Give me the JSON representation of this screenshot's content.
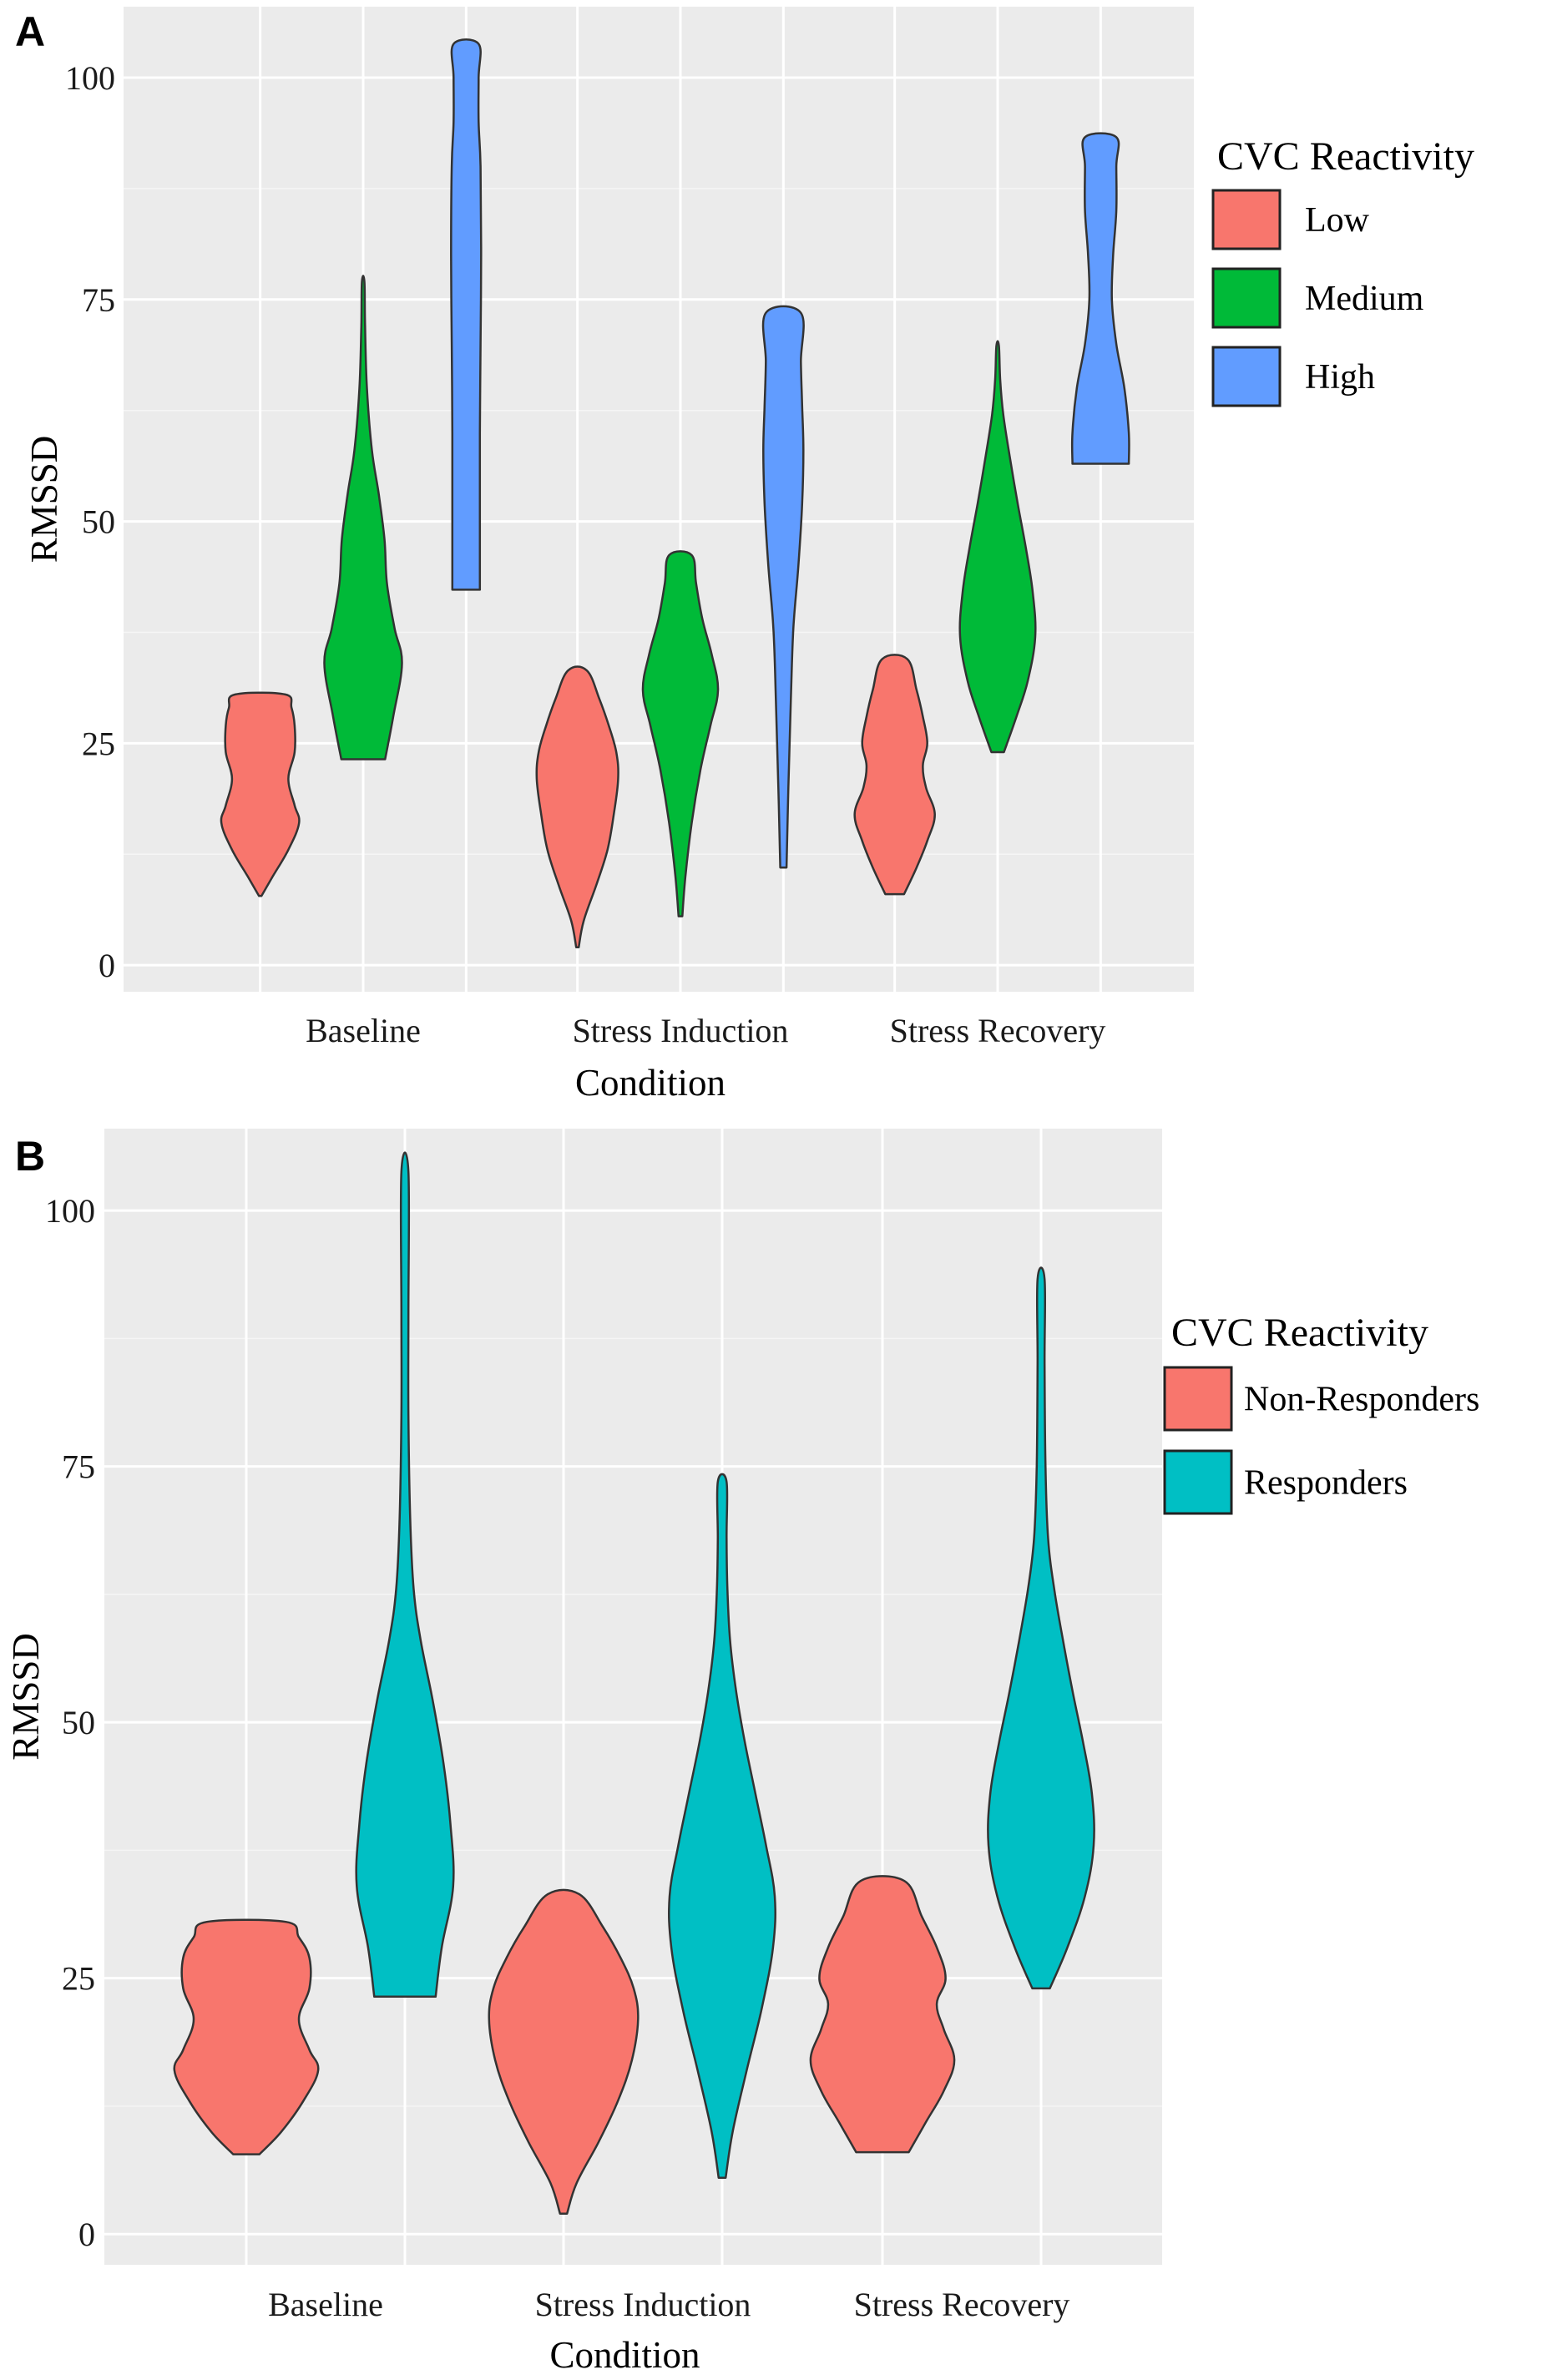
{
  "chart_data": [
    {
      "panel": "A",
      "type": "violin",
      "title": "",
      "xlabel": "Condition",
      "ylabel": "RMSSD",
      "ylim": [
        -3,
        108
      ],
      "yticks": [
        0,
        25,
        50,
        75,
        100
      ],
      "categories": [
        "Baseline",
        "Stress Induction",
        "Stress Recovery"
      ],
      "legend": {
        "title": "CVC Reactivity",
        "position": "right"
      },
      "grid": true,
      "series": [
        {
          "name": "Low",
          "color": "#F8766D",
          "violins": [
            {
              "category": "Baseline",
              "min": 7.8,
              "max": 30.5,
              "profile": [
                [
                  7.8,
                  0.02
                ],
                [
                  10,
                  0.2
                ],
                [
                  13,
                  0.45
                ],
                [
                  16,
                  0.62
                ],
                [
                  18,
                  0.55
                ],
                [
                  21,
                  0.45
                ],
                [
                  24,
                  0.55
                ],
                [
                  27,
                  0.55
                ],
                [
                  29,
                  0.5
                ],
                [
                  30.5,
                  0.4
                ]
              ]
            },
            {
              "category": "Stress Induction",
              "min": 2.0,
              "max": 33.2,
              "profile": [
                [
                  2,
                  0.02
                ],
                [
                  5,
                  0.1
                ],
                [
                  9,
                  0.3
                ],
                [
                  13,
                  0.48
                ],
                [
                  17,
                  0.58
                ],
                [
                  21,
                  0.65
                ],
                [
                  24,
                  0.62
                ],
                [
                  27,
                  0.5
                ],
                [
                  30,
                  0.35
                ],
                [
                  33.2,
                  0.15
                ]
              ]
            },
            {
              "category": "Stress Recovery",
              "min": 8.0,
              "max": 34.5,
              "profile": [
                [
                  8,
                  0.15
                ],
                [
                  11,
                  0.35
                ],
                [
                  14,
                  0.52
                ],
                [
                  17,
                  0.64
                ],
                [
                  20,
                  0.5
                ],
                [
                  22.5,
                  0.45
                ],
                [
                  25,
                  0.52
                ],
                [
                  28,
                  0.45
                ],
                [
                  31,
                  0.35
                ],
                [
                  34.5,
                  0.2
                ]
              ]
            }
          ]
        },
        {
          "name": "Medium",
          "color": "#00BA38",
          "violins": [
            {
              "category": "Baseline",
              "min": 23.2,
              "max": 77.0,
              "profile": [
                [
                  23.2,
                  0.35
                ],
                [
                  28,
                  0.48
                ],
                [
                  34,
                  0.62
                ],
                [
                  38,
                  0.5
                ],
                [
                  43,
                  0.38
                ],
                [
                  48,
                  0.34
                ],
                [
                  53,
                  0.25
                ],
                [
                  58,
                  0.14
                ],
                [
                  65,
                  0.06
                ],
                [
                  72,
                  0.03
                ],
                [
                  77,
                  0.02
                ]
              ]
            },
            {
              "category": "Stress Induction",
              "min": 5.5,
              "max": 46.2,
              "profile": [
                [
                  5.5,
                  0.03
                ],
                [
                  10,
                  0.08
                ],
                [
                  16,
                  0.18
                ],
                [
                  22,
                  0.32
                ],
                [
                  27,
                  0.48
                ],
                [
                  31,
                  0.6
                ],
                [
                  35,
                  0.5
                ],
                [
                  39,
                  0.35
                ],
                [
                  43,
                  0.25
                ],
                [
                  46.2,
                  0.18
                ]
              ]
            },
            {
              "category": "Stress Recovery",
              "min": 24.0,
              "max": 69.8,
              "profile": [
                [
                  24,
                  0.1
                ],
                [
                  28,
                  0.3
                ],
                [
                  32,
                  0.48
                ],
                [
                  37,
                  0.6
                ],
                [
                  42,
                  0.56
                ],
                [
                  47,
                  0.45
                ],
                [
                  52,
                  0.32
                ],
                [
                  57,
                  0.2
                ],
                [
                  62,
                  0.09
                ],
                [
                  66,
                  0.04
                ],
                [
                  69.8,
                  0.02
                ]
              ]
            }
          ]
        },
        {
          "name": "High",
          "color": "#619CFF",
          "violins": [
            {
              "category": "Baseline",
              "min": 42.3,
              "max": 103.8,
              "profile": [
                [
                  42.3,
                  0.22
                ],
                [
                  50,
                  0.22
                ],
                [
                  60,
                  0.22
                ],
                [
                  70,
                  0.23
                ],
                [
                  80,
                  0.24
                ],
                [
                  90,
                  0.23
                ],
                [
                  95,
                  0.2
                ],
                [
                  100,
                  0.2
                ],
                [
                  103.8,
                  0.2
                ]
              ]
            },
            {
              "category": "Stress Induction",
              "min": 11.0,
              "max": 73.5,
              "profile": [
                [
                  11,
                  0.05
                ],
                [
                  20,
                  0.08
                ],
                [
                  30,
                  0.12
                ],
                [
                  38,
                  0.16
                ],
                [
                  45,
                  0.24
                ],
                [
                  52,
                  0.3
                ],
                [
                  58,
                  0.32
                ],
                [
                  63,
                  0.3
                ],
                [
                  68,
                  0.28
                ],
                [
                  73.5,
                  0.28
                ]
              ]
            },
            {
              "category": "Stress Recovery",
              "min": 56.5,
              "max": 93.3,
              "profile": [
                [
                  56.5,
                  0.45
                ],
                [
                  60,
                  0.45
                ],
                [
                  65,
                  0.38
                ],
                [
                  70,
                  0.25
                ],
                [
                  75,
                  0.18
                ],
                [
                  80,
                  0.2
                ],
                [
                  85,
                  0.25
                ],
                [
                  90,
                  0.25
                ],
                [
                  93.3,
                  0.25
                ]
              ]
            }
          ]
        }
      ]
    },
    {
      "panel": "B",
      "type": "violin",
      "title": "",
      "xlabel": "Condition",
      "ylabel": "RMSSD",
      "ylim": [
        -3,
        108
      ],
      "yticks": [
        0,
        25,
        50,
        75,
        100
      ],
      "categories": [
        "Baseline",
        "Stress Induction",
        "Stress Recovery"
      ],
      "legend": {
        "title": "CVC Reactivity",
        "position": "right"
      },
      "grid": true,
      "series": [
        {
          "name": "Non-Responders",
          "color": "#F8766D",
          "violins": [
            {
              "category": "Baseline",
              "min": 7.8,
              "max": 30.5,
              "profile": [
                [
                  7.8,
                  0.15
                ],
                [
                  10,
                  0.4
                ],
                [
                  13,
                  0.65
                ],
                [
                  16,
                  0.82
                ],
                [
                  18,
                  0.72
                ],
                [
                  21,
                  0.6
                ],
                [
                  24,
                  0.72
                ],
                [
                  27,
                  0.72
                ],
                [
                  29,
                  0.6
                ],
                [
                  30.5,
                  0.45
                ]
              ]
            },
            {
              "category": "Stress Induction",
              "min": 2.0,
              "max": 33.2,
              "profile": [
                [
                  2,
                  0.04
                ],
                [
                  5,
                  0.15
                ],
                [
                  9,
                  0.4
                ],
                [
                  13,
                  0.62
                ],
                [
                  17,
                  0.78
                ],
                [
                  21,
                  0.85
                ],
                [
                  24,
                  0.8
                ],
                [
                  27,
                  0.65
                ],
                [
                  30,
                  0.45
                ],
                [
                  33.2,
                  0.18
                ]
              ]
            },
            {
              "category": "Stress Recovery",
              "min": 8.0,
              "max": 34.5,
              "profile": [
                [
                  8,
                  0.3
                ],
                [
                  11,
                  0.5
                ],
                [
                  14,
                  0.7
                ],
                [
                  17,
                  0.82
                ],
                [
                  20,
                  0.7
                ],
                [
                  22.5,
                  0.62
                ],
                [
                  25,
                  0.72
                ],
                [
                  28,
                  0.62
                ],
                [
                  31,
                  0.45
                ],
                [
                  34.5,
                  0.25
                ]
              ]
            }
          ]
        },
        {
          "name": "Responders",
          "color": "#00BFC4",
          "violins": [
            {
              "category": "Baseline",
              "min": 23.2,
              "max": 103.8,
              "profile": [
                [
                  23.2,
                  0.35
                ],
                [
                  28,
                  0.42
                ],
                [
                  34,
                  0.55
                ],
                [
                  40,
                  0.52
                ],
                [
                  46,
                  0.44
                ],
                [
                  52,
                  0.32
                ],
                [
                  58,
                  0.18
                ],
                [
                  63,
                  0.1
                ],
                [
                  70,
                  0.06
                ],
                [
                  80,
                  0.04
                ],
                [
                  90,
                  0.04
                ],
                [
                  103.8,
                  0.04
                ]
              ]
            },
            {
              "category": "Stress Induction",
              "min": 5.5,
              "max": 73.5,
              "profile": [
                [
                  5.5,
                  0.04
                ],
                [
                  10,
                  0.12
                ],
                [
                  16,
                  0.28
                ],
                [
                  22,
                  0.45
                ],
                [
                  28,
                  0.58
                ],
                [
                  33,
                  0.6
                ],
                [
                  38,
                  0.5
                ],
                [
                  43,
                  0.38
                ],
                [
                  48,
                  0.26
                ],
                [
                  53,
                  0.16
                ],
                [
                  58,
                  0.09
                ],
                [
                  63,
                  0.06
                ],
                [
                  68,
                  0.05
                ],
                [
                  73.5,
                  0.05
                ]
              ]
            },
            {
              "category": "Stress Recovery",
              "min": 24.0,
              "max": 93.3,
              "profile": [
                [
                  24,
                  0.1
                ],
                [
                  28,
                  0.3
                ],
                [
                  33,
                  0.5
                ],
                [
                  38,
                  0.6
                ],
                [
                  43,
                  0.58
                ],
                [
                  48,
                  0.48
                ],
                [
                  53,
                  0.36
                ],
                [
                  58,
                  0.25
                ],
                [
                  63,
                  0.15
                ],
                [
                  68,
                  0.08
                ],
                [
                  75,
                  0.05
                ],
                [
                  85,
                  0.04
                ],
                [
                  93.3,
                  0.04
                ]
              ]
            }
          ]
        }
      ]
    }
  ]
}
